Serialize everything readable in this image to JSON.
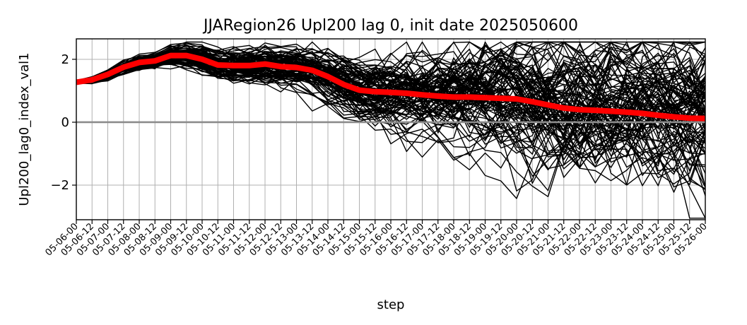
{
  "chart_data": {
    "type": "line",
    "title": "JJARegion26 Upl200 lag 0, init date 2025050600",
    "xlabel": "step",
    "ylabel": "Upl200_lag0_index_val1",
    "ylim": [
      -3.1,
      2.65
    ],
    "y_ticks": [
      -2,
      0,
      2
    ],
    "y_tick_labels": [
      "−2",
      "0",
      "2"
    ],
    "x_tick_labels": [
      "05-06-00",
      "05-06-12",
      "05-07-00",
      "05-07-12",
      "05-08-00",
      "05-08-12",
      "05-09-00",
      "05-09-12",
      "05-10-00",
      "05-10-12",
      "05-11-00",
      "05-11-12",
      "05-12-00",
      "05-12-12",
      "05-13-00",
      "05-13-12",
      "05-14-00",
      "05-14-12",
      "05-15-00",
      "05-15-12",
      "05-16-00",
      "05-16-12",
      "05-17-00",
      "05-17-12",
      "05-18-00",
      "05-18-12",
      "05-19-00",
      "05-19-12",
      "05-20-00",
      "05-20-12",
      "05-21-00",
      "05-21-12",
      "05-22-00",
      "05-22-12",
      "05-23-00",
      "05-23-12",
      "05-24-00",
      "05-24-12",
      "05-25-00",
      "05-25-12",
      "05-26-00"
    ],
    "grid": true,
    "zero_line": true,
    "mean_series": {
      "color": "#ff0000",
      "values": [
        1.27,
        1.35,
        1.52,
        1.75,
        1.9,
        1.95,
        2.12,
        2.12,
        2.0,
        1.82,
        1.8,
        1.8,
        1.85,
        1.77,
        1.74,
        1.65,
        1.45,
        1.2,
        1.02,
        0.97,
        0.95,
        0.92,
        0.87,
        0.83,
        0.8,
        0.8,
        0.78,
        0.76,
        0.74,
        0.65,
        0.55,
        0.45,
        0.4,
        0.38,
        0.35,
        0.32,
        0.28,
        0.22,
        0.17,
        0.13,
        0.12
      ]
    },
    "ensemble": {
      "color": "#000000",
      "member_count": 100,
      "note_values_approximate": true
    }
  }
}
